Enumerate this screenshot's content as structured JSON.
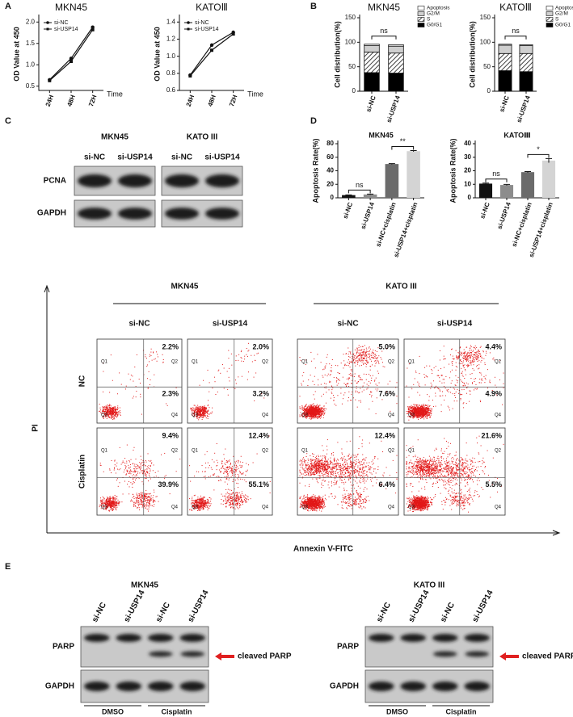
{
  "panel_labels": [
    "A",
    "B",
    "C",
    "D",
    "E"
  ],
  "chart_data": [
    {
      "type": "line",
      "title": "MKN45",
      "y_label": "OD Value at 450",
      "x_label": "Time",
      "categories": [
        "24H",
        "48H",
        "72H"
      ],
      "series": [
        {
          "name": "si-NC",
          "color": "#111111",
          "values": [
            0.65,
            1.15,
            1.88
          ]
        },
        {
          "name": "si-USP14",
          "color": "#111111",
          "values": [
            0.63,
            1.08,
            1.82
          ]
        }
      ],
      "ylim": [
        0.4,
        2.1
      ],
      "yticks": [
        {
          "value": 0.5,
          "label": "0.5"
        },
        {
          "value": 1,
          "label": "1.0"
        },
        {
          "value": 1.5,
          "label": "1.5"
        },
        {
          "value": 2,
          "label": "2.0"
        }
      ]
    },
    {
      "type": "line",
      "title": "KATOⅢ",
      "y_label": "OD Value at 450",
      "x_label": "Time",
      "categories": [
        "24H",
        "48H",
        "72H"
      ],
      "series": [
        {
          "name": "si-NC",
          "color": "#111111",
          "values": [
            0.78,
            1.13,
            1.28
          ]
        },
        {
          "name": "si-USP14",
          "color": "#111111",
          "values": [
            0.77,
            1.07,
            1.26
          ]
        }
      ],
      "ylim": [
        0.6,
        1.45
      ],
      "yticks": [
        {
          "value": 0.6,
          "label": "0.6"
        },
        {
          "value": 0.8,
          "label": "0.8"
        },
        {
          "value": 1,
          "label": "1.0"
        },
        {
          "value": 1.2,
          "label": "1.2"
        },
        {
          "value": 1.4,
          "label": "1.4"
        }
      ]
    },
    {
      "type": "stacked_bar",
      "title": "MKN45",
      "y_label": "Cell distribution(%)",
      "categories": [
        "si-NC",
        "si-USP14"
      ],
      "series": [
        {
          "name": "G0/G1",
          "color": "#000000",
          "values": [
            38,
            37
          ]
        },
        {
          "name": "S",
          "color": "#ffffff",
          "pattern": "hatch",
          "values": [
            42,
            41
          ]
        },
        {
          "name": "G2/M",
          "color": "#cfcfcf",
          "values": [
            13,
            14
          ]
        },
        {
          "name": "Apoptosis",
          "color": "#ffffff",
          "values": [
            3,
            3
          ]
        }
      ],
      "ylim": [
        0,
        150
      ],
      "yticks": [
        0,
        50,
        100,
        150
      ],
      "annotations": [
        {
          "text": "ns",
          "between": [
            0,
            1
          ]
        }
      ]
    },
    {
      "type": "stacked_bar",
      "title": "KATOⅢ",
      "y_label": "Cell distribution(%)",
      "categories": [
        "si-NC",
        "si-USP14"
      ],
      "series": [
        {
          "name": "G0/G1",
          "color": "#000000",
          "values": [
            42,
            40
          ]
        },
        {
          "name": "S",
          "color": "#ffffff",
          "pattern": "hatch",
          "values": [
            35,
            37
          ]
        },
        {
          "name": "G2/M",
          "color": "#cfcfcf",
          "values": [
            17,
            16
          ]
        },
        {
          "name": "Apoptosis",
          "color": "#ffffff",
          "values": [
            2,
            2
          ]
        }
      ],
      "ylim": [
        0,
        150
      ],
      "yticks": [
        0,
        50,
        100,
        150
      ],
      "annotations": [
        {
          "text": "ns",
          "between": [
            0,
            1
          ]
        }
      ]
    },
    {
      "type": "bar",
      "title": "MKN45",
      "y_label": "Apoptosis Rate(%)",
      "categories": [
        "si-NC",
        "si-USP14",
        "si-NC+cisplatin",
        "si-USP14+cisplatin"
      ],
      "values": [
        4,
        5,
        50,
        69
      ],
      "errors": [
        0.4,
        0.5,
        0.6,
        0.8
      ],
      "colors": [
        "#111111",
        "#8c8c8c",
        "#6b6b6b",
        "#d4d4d4"
      ],
      "ylim": [
        0,
        80
      ],
      "yticks": [
        0,
        20,
        40,
        60,
        80
      ],
      "annotations": [
        {
          "text": "ns",
          "between": [
            0,
            1
          ]
        },
        {
          "text": "**",
          "between": [
            2,
            3
          ]
        }
      ]
    },
    {
      "type": "bar",
      "title": "KATOⅢ",
      "y_label": "Apoptosis Rate(%)",
      "categories": [
        "si-NC",
        "si-USP14",
        "si-NC+cisplatin",
        "si-USP14+cisplatin"
      ],
      "values": [
        10.5,
        9.5,
        19,
        27.5
      ],
      "errors": [
        0.4,
        0.4,
        0.4,
        1.5
      ],
      "colors": [
        "#111111",
        "#8c8c8c",
        "#6b6b6b",
        "#d4d4d4"
      ],
      "ylim": [
        0,
        40
      ],
      "yticks": [
        0,
        10,
        20,
        30,
        40
      ],
      "annotations": [
        {
          "text": "ns",
          "between": [
            0,
            1
          ]
        },
        {
          "text": "*",
          "between": [
            2,
            3
          ]
        }
      ]
    }
  ],
  "blot_c": {
    "groups": [
      {
        "title": "MKN45",
        "lanes": [
          "si-NC",
          "si-USP14"
        ]
      },
      {
        "title": "KATO III",
        "lanes": [
          "si-NC",
          "si-USP14"
        ]
      }
    ],
    "rows": [
      "PCNA",
      "GAPDH"
    ]
  },
  "flow": {
    "groups": [
      "MKN45",
      "KATO III"
    ],
    "columns": [
      "si-NC",
      "si-USP14",
      "si-NC",
      "si-USP14"
    ],
    "rows": [
      "NC",
      "Cisplatin"
    ],
    "y_label": "PI",
    "x_label": "Annexin V-FITC",
    "quadrants": [
      "Q1",
      "Q2",
      "Q3",
      "Q4"
    ],
    "percentages": [
      [
        [
          "2.2%",
          "2.3%"
        ],
        [
          "2.0%",
          "3.2%"
        ],
        [
          "5.0%",
          "7.6%"
        ],
        [
          "4.4%",
          "4.9%"
        ]
      ],
      [
        [
          "9.4%",
          "39.9%"
        ],
        [
          "12.4%",
          "55.1%"
        ],
        [
          "12.4%",
          "6.4%"
        ],
        [
          "21.6%",
          "5.5%"
        ]
      ]
    ]
  },
  "blot_e": {
    "groups": [
      {
        "title": "MKN45",
        "lanes": [
          "si-NC",
          "si-USP14",
          "si-NC",
          "si-USP14"
        ]
      },
      {
        "title": "KATO III",
        "lanes": [
          "si-NC",
          "si-USP14",
          "si-NC",
          "si-USP14"
        ]
      }
    ],
    "rows": [
      "PARP",
      "GAPDH"
    ],
    "arrow_label": "cleaved PARP",
    "treatments": [
      "DMSO",
      "Cisplatin"
    ]
  }
}
